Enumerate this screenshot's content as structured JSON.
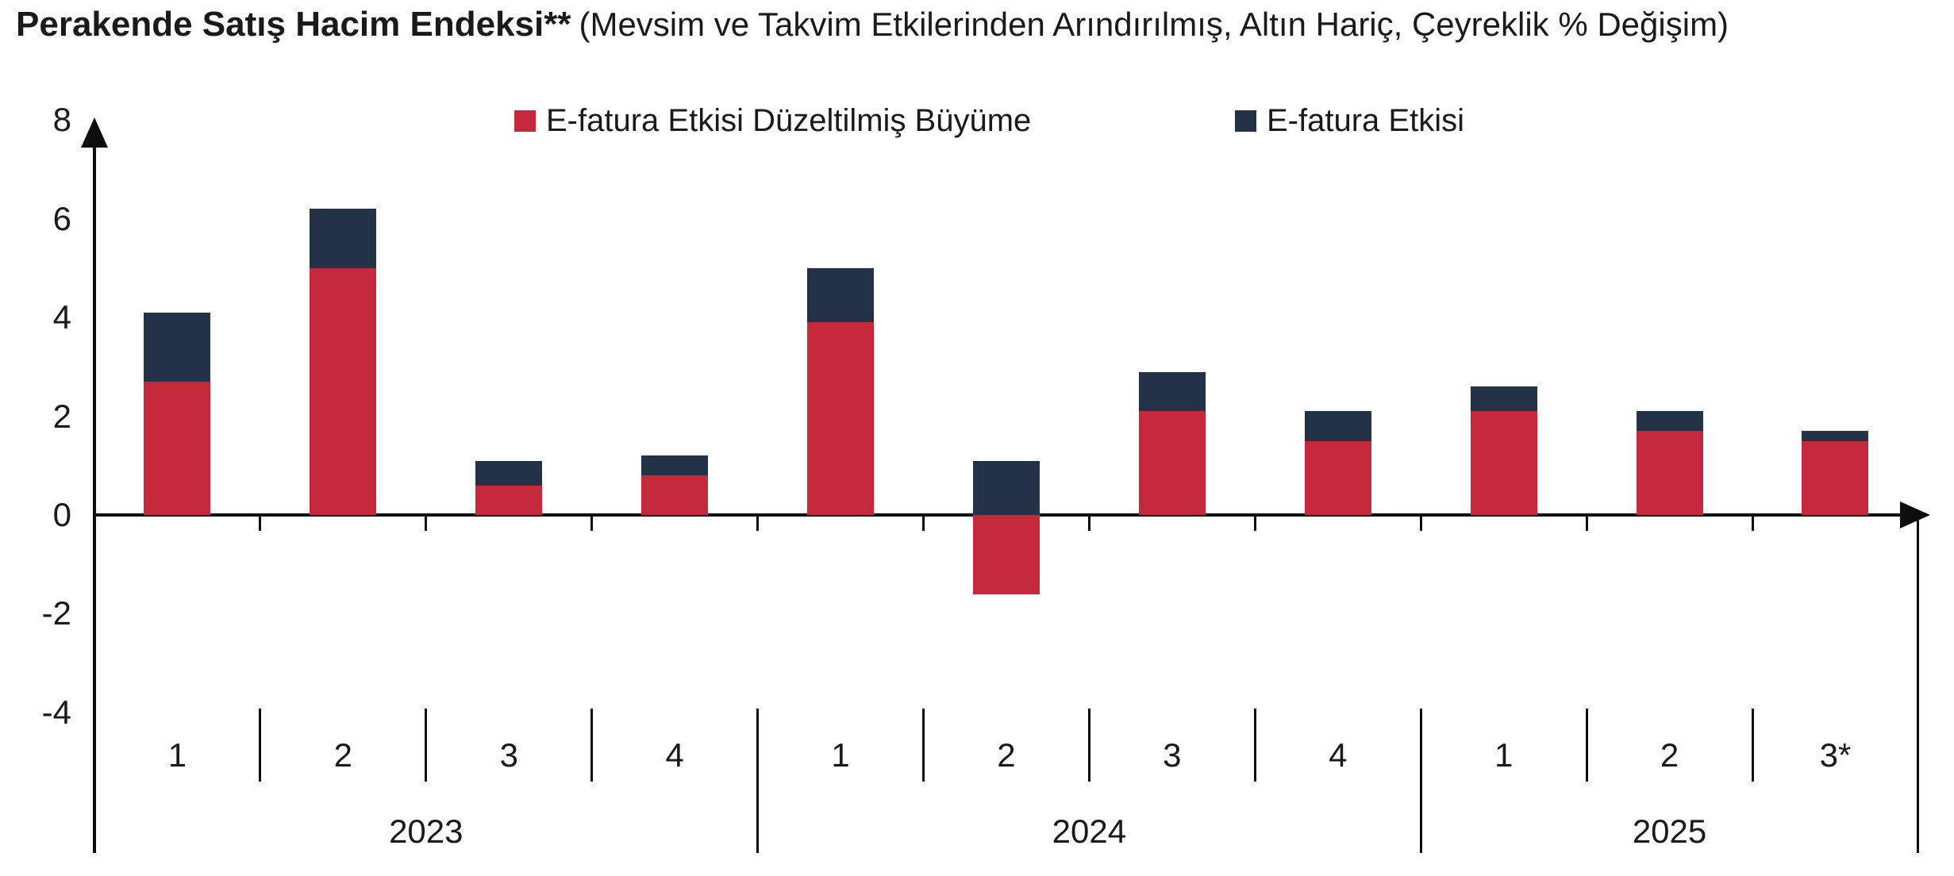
{
  "title": {
    "main": "Perakende Satış Hacim Endeksi**",
    "sub": "(Mevsim ve Takvim Etkilerinden Arındırılmış, Altın Hariç, Çeyreklik % Değişim)"
  },
  "legend": {
    "adjusted_label": "E-fatura Etkisi Düzeltilmiş Büyüme",
    "efatura_label": "E-fatura Etkisi"
  },
  "colors": {
    "adjusted_red": "#c4283b",
    "efatura_navy": "#233246",
    "axis_black": "#0d0d0d"
  },
  "chart_data": {
    "type": "bar",
    "stacked": true,
    "title": "Perakende Satış Hacim Endeksi** (Mevsim ve Takvim Etkilerinden Arındırılmış, Altın Hariç, Çeyreklik % Değişim)",
    "categories": [
      "1",
      "2",
      "3",
      "4",
      "1",
      "2",
      "3",
      "4",
      "1",
      "2",
      "3*"
    ],
    "year_groups": [
      {
        "label": "2023",
        "span": 4
      },
      {
        "label": "2024",
        "span": 4
      },
      {
        "label": "2025",
        "span": 3
      }
    ],
    "series": [
      {
        "name": "E-fatura Etkisi Düzeltilmiş Büyüme",
        "color": "#c4283b",
        "values": [
          2.7,
          5.0,
          0.6,
          0.8,
          3.9,
          -1.6,
          2.1,
          1.5,
          2.1,
          1.7,
          1.5
        ]
      },
      {
        "name": "E-fatura Etkisi",
        "color": "#233246",
        "values": [
          1.4,
          1.2,
          0.5,
          0.4,
          1.1,
          1.1,
          0.8,
          0.6,
          0.5,
          0.4,
          0.2
        ]
      }
    ],
    "y_ticks": [
      8,
      6,
      4,
      2,
      0,
      -2,
      -4
    ],
    "ylim": [
      -4,
      8
    ],
    "xlabel": "",
    "ylabel": "",
    "grid": false,
    "legend_position": "top-center"
  }
}
